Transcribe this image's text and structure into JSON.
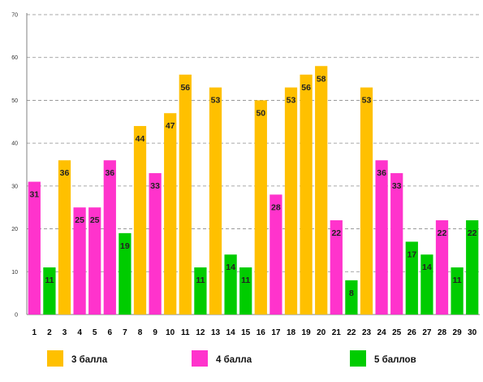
{
  "chart_data": {
    "type": "bar",
    "title": "",
    "xlabel": "",
    "ylabel": "",
    "ylim": [
      0,
      70
    ],
    "yticks": [
      0,
      10,
      20,
      30,
      40,
      50,
      60,
      70
    ],
    "grid": true,
    "legend_position": "bottom",
    "categories": [
      "1",
      "2",
      "3",
      "4",
      "5",
      "6",
      "7",
      "8",
      "9",
      "10",
      "11",
      "12",
      "13",
      "14",
      "15",
      "16",
      "17",
      "18",
      "19",
      "20",
      "21",
      "22",
      "23",
      "24",
      "25",
      "26",
      "27",
      "28",
      "29",
      "30"
    ],
    "values": [
      31,
      11,
      36,
      25,
      25,
      36,
      19,
      44,
      33,
      47,
      56,
      11,
      53,
      14,
      11,
      50,
      28,
      53,
      56,
      58,
      22,
      8,
      53,
      36,
      33,
      17,
      14,
      22,
      11,
      22
    ],
    "groups": [
      "4",
      "5",
      "3",
      "4",
      "4",
      "4",
      "5",
      "3",
      "4",
      "3",
      "3",
      "5",
      "3",
      "5",
      "5",
      "3",
      "4",
      "3",
      "3",
      "3",
      "4",
      "5",
      "3",
      "4",
      "4",
      "5",
      "5",
      "4",
      "5",
      "5"
    ],
    "series": [
      {
        "key": "3",
        "name": "3 балла",
        "color": "#FFC000"
      },
      {
        "key": "4",
        "name": "4 балла",
        "color": "#FF33CC"
      },
      {
        "key": "5",
        "name": "5 баллов",
        "color": "#00CC00"
      }
    ]
  }
}
